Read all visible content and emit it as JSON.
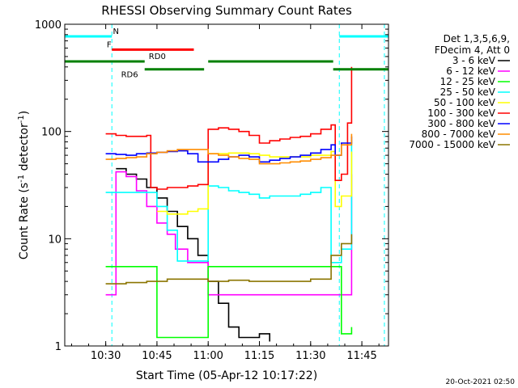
{
  "chart_data": {
    "type": "line",
    "title": "RHESSI Observing Summary Count Rates",
    "xlabel": "Start Time (05-Apr-12 10:17:22)",
    "ylabel_main": "Count Rate (s",
    "ylabel_sup1": "-1",
    "ylabel_mid": " detector",
    "ylabel_sup2": "-1",
    "ylabel_end": ")",
    "yscale": "log",
    "ylim": [
      1,
      1000
    ],
    "xlim": [
      10.3,
      11.88
    ],
    "xticks": [
      {
        "x": 10.5,
        "label": "10:30"
      },
      {
        "x": 10.75,
        "label": "10:45"
      },
      {
        "x": 11.0,
        "label": "11:00"
      },
      {
        "x": 11.25,
        "label": "11:15"
      },
      {
        "x": 11.5,
        "label": "11:30"
      },
      {
        "x": 11.75,
        "label": "11:45"
      }
    ],
    "yticks": [
      {
        "y": 1,
        "label": "1"
      },
      {
        "y": 10,
        "label": "10"
      },
      {
        "y": 100,
        "label": "100"
      },
      {
        "y": 1000,
        "label": "1000"
      }
    ],
    "legend_header": [
      "Det 1,3,5,6,9,",
      "FDecim 4, Att 0"
    ],
    "footer_date": "20-Oct-2021 02:50",
    "series": [
      {
        "name": "3 - 6 keV",
        "color": "#000000",
        "x": [
          10.55,
          10.6,
          10.65,
          10.7,
          10.75,
          10.8,
          10.85,
          10.9,
          10.95,
          11.0,
          11.05,
          11.1,
          11.15,
          11.2,
          11.25,
          11.3
        ],
        "y": [
          45,
          40,
          36,
          30,
          24,
          18,
          13,
          10,
          7,
          4,
          2.5,
          1.5,
          1.2,
          1.2,
          1.3,
          1.1
        ]
      },
      {
        "name": "6 - 12 keV",
        "color": "#ff00ff",
        "x": [
          10.5,
          10.53,
          10.55,
          10.6,
          10.65,
          10.7,
          10.75,
          10.8,
          10.84,
          10.9,
          11.0,
          11.1,
          11.2,
          11.3,
          11.4,
          11.5,
          11.6,
          11.66,
          11.7
        ],
        "y": [
          3,
          3,
          42,
          38,
          28,
          20,
          14,
          11,
          8,
          6,
          3,
          3,
          3,
          3,
          3,
          3,
          3,
          3,
          40
        ]
      },
      {
        "name": "12 - 25 keV",
        "color": "#00ff00",
        "x": [
          10.5,
          10.6,
          10.7,
          10.75,
          10.8,
          10.9,
          11.0,
          11.1,
          11.2,
          11.3,
          11.4,
          11.5,
          11.6,
          11.65,
          11.7
        ],
        "y": [
          5.5,
          5.5,
          5.5,
          1.2,
          1.2,
          1.2,
          5.5,
          5.5,
          5.5,
          5.5,
          5.5,
          5.5,
          5.5,
          1.3,
          1.5
        ]
      },
      {
        "name": "25 - 50 keV",
        "color": "#00ffff",
        "x": [
          10.5,
          10.55,
          10.6,
          10.65,
          10.7,
          10.75,
          10.8,
          10.85,
          10.9,
          10.95,
          11.0,
          11.05,
          11.1,
          11.15,
          11.2,
          11.25,
          11.3,
          11.35,
          11.4,
          11.45,
          11.5,
          11.55,
          11.6,
          11.65,
          11.7
        ],
        "y": [
          27,
          27,
          27,
          27,
          27,
          20,
          12,
          6.2,
          6.2,
          6.2,
          31,
          30,
          28,
          27,
          26,
          24,
          25,
          25,
          25,
          26,
          27,
          30,
          6,
          8,
          80
        ]
      },
      {
        "name": "50 - 100 keV",
        "color": "#ffff00",
        "x": [
          10.75,
          10.8,
          10.85,
          10.9,
          10.95,
          11.0,
          11.1,
          11.2,
          11.25,
          11.3,
          11.4,
          11.5,
          11.6,
          11.62,
          11.65,
          11.7
        ],
        "y": [
          18,
          17,
          17,
          18,
          19,
          62,
          63,
          62,
          60,
          58,
          58,
          60,
          65,
          20,
          25,
          65
        ]
      },
      {
        "name": "100 - 300 keV",
        "color": "#ff0000",
        "x": [
          10.5,
          10.55,
          10.6,
          10.65,
          10.7,
          10.72,
          10.75,
          10.8,
          10.9,
          10.95,
          11.0,
          11.05,
          11.1,
          11.15,
          11.2,
          11.25,
          11.3,
          11.35,
          11.4,
          11.45,
          11.5,
          11.55,
          11.6,
          11.62,
          11.65,
          11.68,
          11.7
        ],
        "y": [
          95,
          92,
          90,
          90,
          92,
          30,
          29,
          30,
          31,
          32,
          105,
          108,
          105,
          100,
          92,
          78,
          82,
          85,
          88,
          90,
          95,
          105,
          115,
          35,
          40,
          120,
          400
        ]
      },
      {
        "name": "300 - 800 keV",
        "color": "#0000ff",
        "x": [
          10.5,
          10.55,
          10.6,
          10.65,
          10.7,
          10.75,
          10.8,
          10.85,
          10.9,
          10.95,
          11.0,
          11.05,
          11.1,
          11.15,
          11.2,
          11.25,
          11.3,
          11.35,
          11.4,
          11.45,
          11.5,
          11.55,
          11.6,
          11.62,
          11.65,
          11.7
        ],
        "y": [
          62,
          61,
          60,
          62,
          63,
          64,
          65,
          66,
          62,
          52,
          52,
          55,
          58,
          60,
          58,
          52,
          54,
          56,
          58,
          60,
          63,
          68,
          75,
          60,
          78,
          90
        ]
      },
      {
        "name": "800 - 7000 keV",
        "color": "#ff8c00",
        "x": [
          10.5,
          10.55,
          10.6,
          10.65,
          10.7,
          10.75,
          10.8,
          10.85,
          10.9,
          10.95,
          11.0,
          11.05,
          11.1,
          11.15,
          11.2,
          11.25,
          11.3,
          11.35,
          11.4,
          11.45,
          11.5,
          11.55,
          11.6,
          11.65,
          11.7
        ],
        "y": [
          55,
          56,
          57,
          58,
          62,
          64,
          66,
          68,
          68,
          68,
          62,
          60,
          58,
          56,
          55,
          50,
          50,
          51,
          52,
          53,
          55,
          57,
          60,
          75,
          95
        ]
      },
      {
        "name": "7000 - 15000 keV",
        "color": "#8b7500",
        "x": [
          10.5,
          10.6,
          10.7,
          10.8,
          10.9,
          11.0,
          11.1,
          11.2,
          11.3,
          11.4,
          11.5,
          11.6,
          11.65,
          11.7
        ],
        "y": [
          3.8,
          3.9,
          4,
          4.2,
          4.2,
          4,
          4.1,
          4,
          4,
          4,
          4.2,
          7,
          9,
          11
        ]
      }
    ],
    "attenuator_bars": [
      {
        "label": "N",
        "color": "#00ffff",
        "segments": [
          [
            10.3,
            10.53
          ],
          [
            11.64,
            11.88
          ]
        ],
        "y": 770
      },
      {
        "label": "F",
        "color": "#ff0000",
        "segments": [
          [
            10.53,
            10.93
          ]
        ],
        "y": 580
      },
      {
        "label": "RD0",
        "color": "#008000",
        "segments": [
          [
            10.3,
            10.69
          ],
          [
            11.0,
            11.61
          ]
        ],
        "y": 450
      },
      {
        "label": "RD6",
        "color": "#008000",
        "segments": [
          [
            10.69,
            10.98
          ],
          [
            11.61,
            11.88
          ]
        ],
        "y": 380
      }
    ],
    "vertical_markers": [
      10.53,
      11.64,
      11.86
    ]
  }
}
